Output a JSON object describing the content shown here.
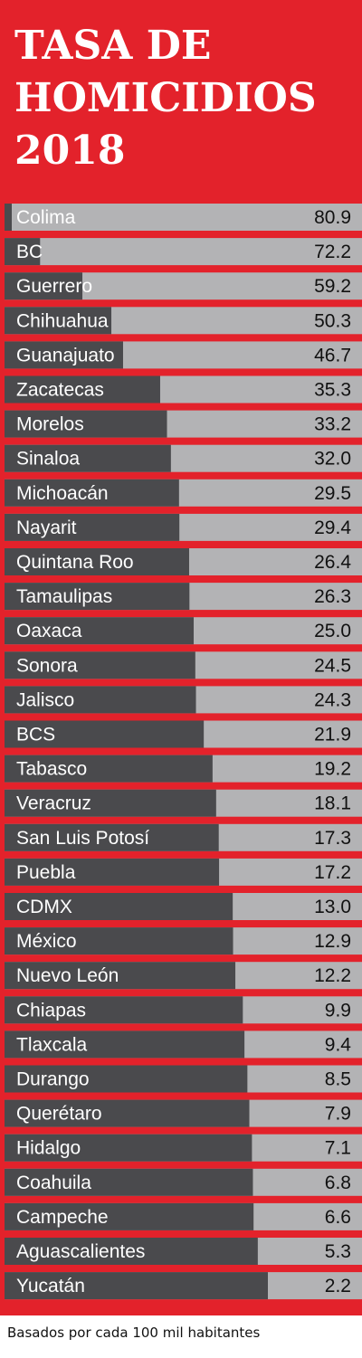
{
  "title_lines": [
    "TASA DE",
    "HOMICIDIOS",
    "2018"
  ],
  "footnote": "Basados por cada 100 mil habitantes",
  "colors": {
    "background": "#e3222b",
    "bar_fill": "#b3b3b5",
    "label_box": "#4a4a4d",
    "label_text": "#ffffff",
    "value_text": "#111111"
  },
  "chart_data": {
    "type": "bar",
    "orientation": "horizontal",
    "title": "TASA DE HOMICIDIOS 2018",
    "categories": [
      "Colima",
      "BC",
      "Guerrero",
      "Chihuahua",
      "Guanajuato",
      "Zacatecas",
      "Morelos",
      "Sinaloa",
      "Michoacán",
      "Nayarit",
      "Quintana Roo",
      "Tamaulipas",
      "Oaxaca",
      "Sonora",
      "Jalisco",
      "BCS",
      "Tabasco",
      "Veracruz",
      "San Luis Potosí",
      "Puebla",
      "CDMX",
      "México",
      "Nuevo León",
      "Chiapas",
      "Tlaxcala",
      "Durango",
      "Querétaro",
      "Hidalgo",
      "Coahuila",
      "Campeche",
      "Aguascalientes",
      "Yucatán"
    ],
    "values": [
      "80.9",
      "72.2",
      "59.2",
      "50.3",
      "46.7",
      "35.3",
      "33.2",
      "32.0",
      "29.5",
      "29.4",
      "26.4",
      "26.3",
      "25.0",
      "24.5",
      "24.3",
      "21.9",
      "19.2",
      "18.1",
      "17.3",
      "17.2",
      "13.0",
      "12.9",
      "12.2",
      "9.9",
      "9.4",
      "8.5",
      "7.9",
      "7.1",
      "6.8",
      "6.6",
      "5.3",
      "2.2"
    ],
    "xlim": [
      0,
      80.9
    ],
    "xlabel": "",
    "ylabel": "",
    "grid": false,
    "legend": "none"
  }
}
